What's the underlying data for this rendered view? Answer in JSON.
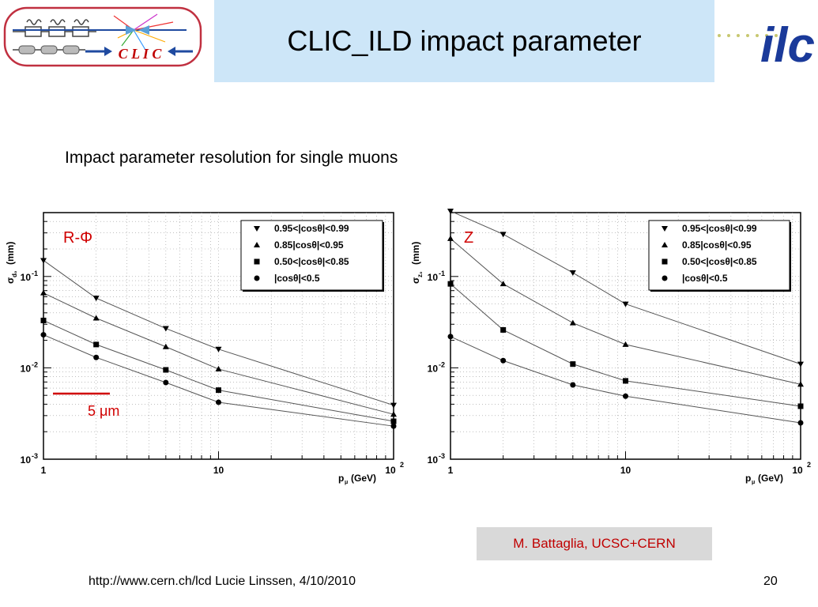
{
  "header": {
    "title": "CLIC_ILD impact parameter",
    "clic_logo_text": "C L I C",
    "ilc_logo_text": "ilc"
  },
  "subtitle": "Impact parameter resolution for single muons",
  "footer": {
    "left_text": "http://www.cern.ch/lcd   Lucie Linssen, 4/10/2010",
    "page_number": "20"
  },
  "credit": "M. Battaglia, UCSC+CERN",
  "colors": {
    "title_bg": "#cde6f8",
    "credit_bg": "#d9d9d9",
    "accent_red": "#c00000",
    "clic_blue": "#1a3a9a"
  },
  "chart_data": [
    {
      "type": "line",
      "id": "rphi",
      "panel_label": "R-Φ",
      "ylabel_main": "σ",
      "ylabel_sub": "d₀",
      "ylabel_unit": "(mm)",
      "xlabel": "p",
      "xlabel_sub": "μ",
      "xlabel_unit": "(GeV)",
      "x_scale": "log",
      "y_scale": "log",
      "xlim": [
        1,
        100
      ],
      "ylim": [
        0.001,
        0.5
      ],
      "x_ticks": [
        {
          "v": 1,
          "label": "1"
        },
        {
          "v": 10,
          "label": "10"
        },
        {
          "v": 100,
          "label": "10",
          "exp": "2"
        }
      ],
      "y_ticks": [
        {
          "v": 0.1,
          "label": "10",
          "exp": "-1"
        },
        {
          "v": 0.01,
          "label": "10",
          "exp": "-2"
        },
        {
          "v": 0.001,
          "label": "10",
          "exp": "-3"
        }
      ],
      "x": [
        1,
        2,
        5,
        10,
        100
      ],
      "scale_bar": {
        "label": "5 μm",
        "value_mm": 0.005
      },
      "legend_position": "top-right",
      "series": [
        {
          "name": "0.95<|cosθ|<0.99",
          "marker": "triangle-down",
          "values": [
            0.15,
            0.058,
            0.027,
            0.016,
            0.0039
          ]
        },
        {
          "name": "0.85|cosθ|<0.95",
          "marker": "triangle-up",
          "values": [
            0.066,
            0.035,
            0.017,
            0.0097,
            0.0031
          ]
        },
        {
          "name": "0.50<|cosθ|<0.85",
          "marker": "square",
          "values": [
            0.033,
            0.018,
            0.0095,
            0.0057,
            0.0026
          ]
        },
        {
          "name": "|cosθ|<0.5",
          "marker": "circle",
          "values": [
            0.023,
            0.013,
            0.0069,
            0.0042,
            0.0023
          ]
        }
      ]
    },
    {
      "type": "line",
      "id": "z",
      "panel_label": "Z",
      "ylabel_main": "σ",
      "ylabel_sub": "z₀",
      "ylabel_unit": "(mm)",
      "xlabel": "p",
      "xlabel_sub": "μ",
      "xlabel_unit": "(GeV)",
      "x_scale": "log",
      "y_scale": "log",
      "xlim": [
        1,
        100
      ],
      "ylim": [
        0.001,
        0.5
      ],
      "x_ticks": [
        {
          "v": 1,
          "label": "1"
        },
        {
          "v": 10,
          "label": "10"
        },
        {
          "v": 100,
          "label": "10",
          "exp": "2"
        }
      ],
      "y_ticks": [
        {
          "v": 0.1,
          "label": "10",
          "exp": "-1"
        },
        {
          "v": 0.01,
          "label": "10",
          "exp": "-2"
        },
        {
          "v": 0.001,
          "label": "10",
          "exp": "-3"
        }
      ],
      "x": [
        1,
        2,
        5,
        10,
        100
      ],
      "legend_position": "top-right",
      "series": [
        {
          "name": "0.95<|cosθ|<0.99",
          "marker": "triangle-down",
          "values": [
            0.52,
            0.29,
            0.11,
            0.05,
            0.011
          ]
        },
        {
          "name": "0.85|cosθ|<0.95",
          "marker": "triangle-up",
          "values": [
            0.26,
            0.083,
            0.031,
            0.018,
            0.0066
          ]
        },
        {
          "name": "0.50<|cosθ|<0.85",
          "marker": "square",
          "values": [
            0.083,
            0.026,
            0.011,
            0.0072,
            0.0038
          ]
        },
        {
          "name": "|cosθ|<0.5",
          "marker": "circle",
          "values": [
            0.022,
            0.012,
            0.0065,
            0.0049,
            0.0025
          ]
        }
      ]
    }
  ]
}
